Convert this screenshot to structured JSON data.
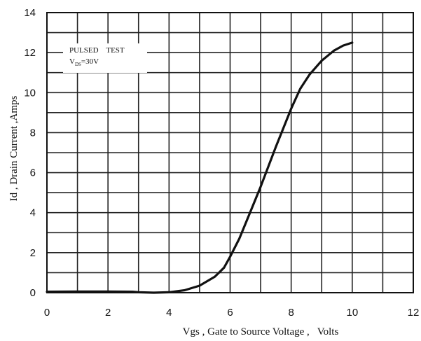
{
  "chart_data": {
    "type": "line",
    "xlabel": "Vgs , Gate to Source Voltage ,   Volts",
    "ylabel": "Id , Drain Current ,Amps",
    "xlim": [
      0,
      12
    ],
    "ylim": [
      0,
      14
    ],
    "x_ticks": [
      "0",
      "2",
      "4",
      "6",
      "8",
      "10",
      "12"
    ],
    "y_ticks": [
      "0",
      "2",
      "4",
      "6",
      "8",
      "10",
      "12",
      "14"
    ],
    "x_minor_step": 1,
    "y_minor_step": 1,
    "grid": true,
    "annotation": {
      "line1": "PULSED    TEST",
      "line2_main": "V",
      "line2_sub": "DS",
      "line2_rest": "=30V"
    },
    "series": [
      {
        "color": "#111111",
        "x": [
          0,
          1,
          2,
          2.8,
          3,
          3.5,
          4,
          4.5,
          5,
          5.5,
          5.8,
          6,
          6.3,
          6.6,
          7,
          7.5,
          8,
          8.3,
          8.6,
          9,
          9.4,
          9.7,
          10
        ],
        "y": [
          0.05,
          0.06,
          0.06,
          0.05,
          0.02,
          0.0,
          0.02,
          0.12,
          0.35,
          0.8,
          1.25,
          1.8,
          2.7,
          3.8,
          5.3,
          7.3,
          9.2,
          10.2,
          10.9,
          11.6,
          12.1,
          12.35,
          12.5
        ]
      }
    ]
  }
}
